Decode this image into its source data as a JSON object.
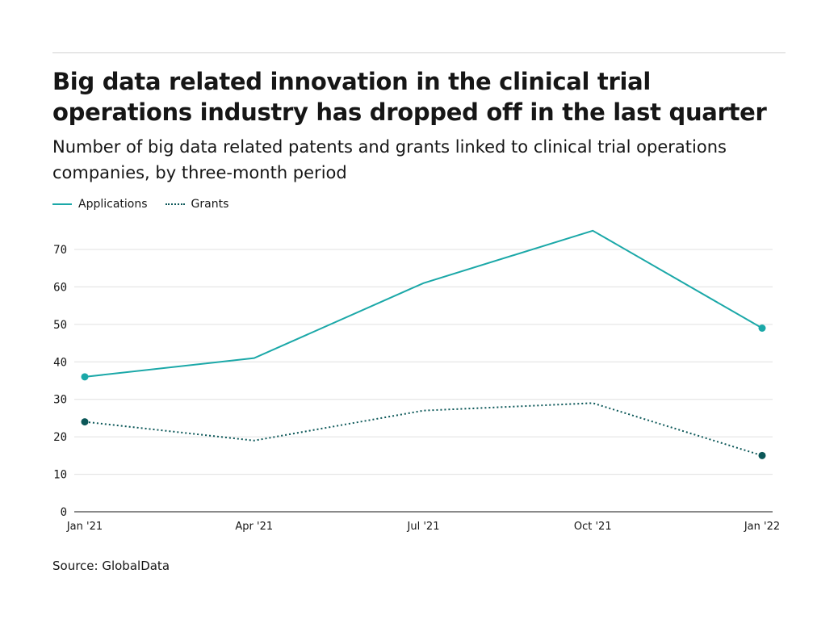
{
  "title": "Big data related innovation in the clinical trial operations industry has dropped off in the last quarter",
  "subtitle": "Number of big data related patents and grants linked to clinical trial operations companies, by three-month period",
  "source": "Source: GlobalData",
  "chart_data": {
    "type": "line",
    "categories": [
      "Jan '21",
      "Apr '21",
      "Jul '21",
      "Oct '21",
      "Jan '22"
    ],
    "series": [
      {
        "name": "Applications",
        "values": [
          36,
          41,
          61,
          75,
          49
        ],
        "color": "#1ba8a8",
        "style": "solid"
      },
      {
        "name": "Grants",
        "values": [
          24,
          19,
          27,
          29,
          15
        ],
        "color": "#0b5758",
        "style": "dotted"
      }
    ],
    "yticks": [
      0,
      10,
      20,
      30,
      40,
      50,
      60,
      70
    ],
    "ylim": [
      0,
      70
    ],
    "grid": true,
    "legend": "top-left"
  }
}
